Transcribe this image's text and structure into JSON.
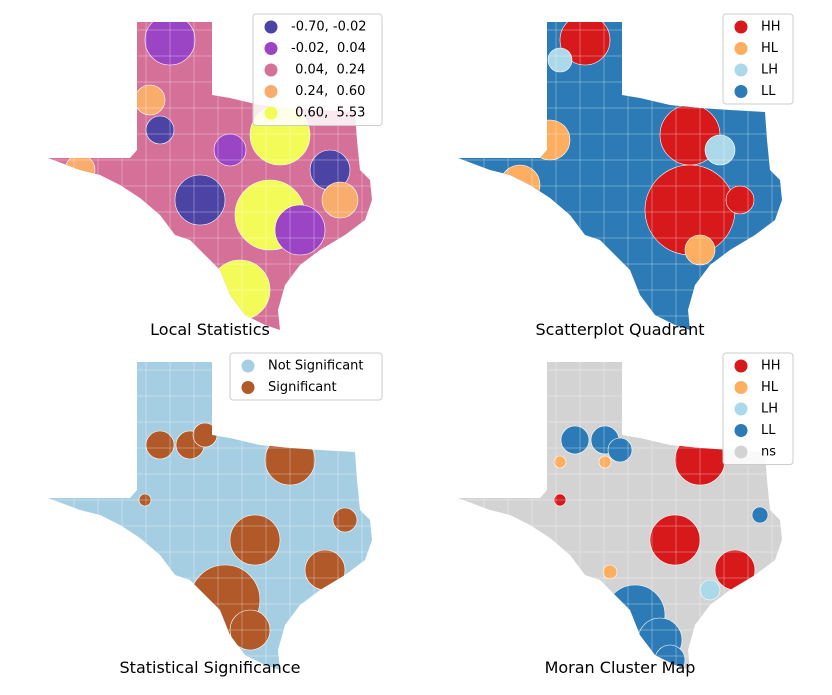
{
  "panels": [
    {
      "title": "Local Statistics",
      "legend": [
        {
          "label": "-0.70, -0.02",
          "color": "#4c44a5"
        },
        {
          "label": "-0.02,  0.04",
          "color": "#9c45c4"
        },
        {
          "label": " 0.04,  0.24",
          "color": "#d57198"
        },
        {
          "label": " 0.24,  0.60",
          "color": "#f9ad6c"
        },
        {
          "label": " 0.60,  5.53",
          "color": "#f2fb58"
        }
      ]
    },
    {
      "title": "Scatterplot Quadrant",
      "legend": [
        {
          "label": "HH",
          "color": "#d7191c"
        },
        {
          "label": "HL",
          "color": "#fdae61"
        },
        {
          "label": "LH",
          "color": "#abd9e9"
        },
        {
          "label": "LL",
          "color": "#2c7bb6"
        }
      ]
    },
    {
      "title": "Statistical Significance",
      "legend": [
        {
          "label": "Not Significant",
          "color": "#a6cee3"
        },
        {
          "label": "Significant",
          "color": "#b15928"
        }
      ]
    },
    {
      "title": "Moran Cluster Map",
      "legend": [
        {
          "label": "HH",
          "color": "#d7191c"
        },
        {
          "label": "HL",
          "color": "#fdae61"
        },
        {
          "label": "LH",
          "color": "#abd9e9"
        },
        {
          "label": "LL",
          "color": "#2c7bb6"
        },
        {
          "label": "ns",
          "color": "#d3d3d3"
        }
      ]
    }
  ]
}
